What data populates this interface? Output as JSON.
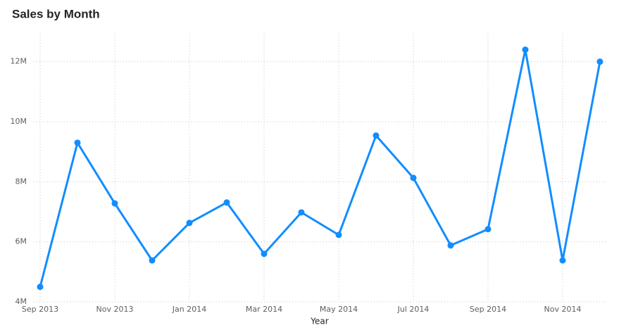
{
  "chart_data": {
    "type": "line",
    "title": "Sales by Month",
    "x_label": "Year",
    "categories": [
      "Sep 2013",
      null,
      "Nov 2013",
      null,
      "Jan 2014",
      null,
      "Mar 2014",
      null,
      "May 2014",
      null,
      "Jul 2014",
      null,
      "Sep 2014",
      null,
      "Nov 2014",
      null
    ],
    "series": [
      {
        "name": "Sales",
        "color": "#118dff",
        "values": [
          4500000,
          9300000,
          7280000,
          5380000,
          6630000,
          7310000,
          5600000,
          6980000,
          6230000,
          9540000,
          8130000,
          5880000,
          6420000,
          12400000,
          5380000,
          12000000
        ]
      }
    ],
    "ylim": [
      4000000,
      13000000
    ],
    "yticks": [
      {
        "value": 4000000,
        "label": "4M"
      },
      {
        "value": 6000000,
        "label": "6M"
      },
      {
        "value": 8000000,
        "label": "8M"
      },
      {
        "value": 10000000,
        "label": "10M"
      },
      {
        "value": 12000000,
        "label": "12M"
      }
    ],
    "grid": true
  }
}
